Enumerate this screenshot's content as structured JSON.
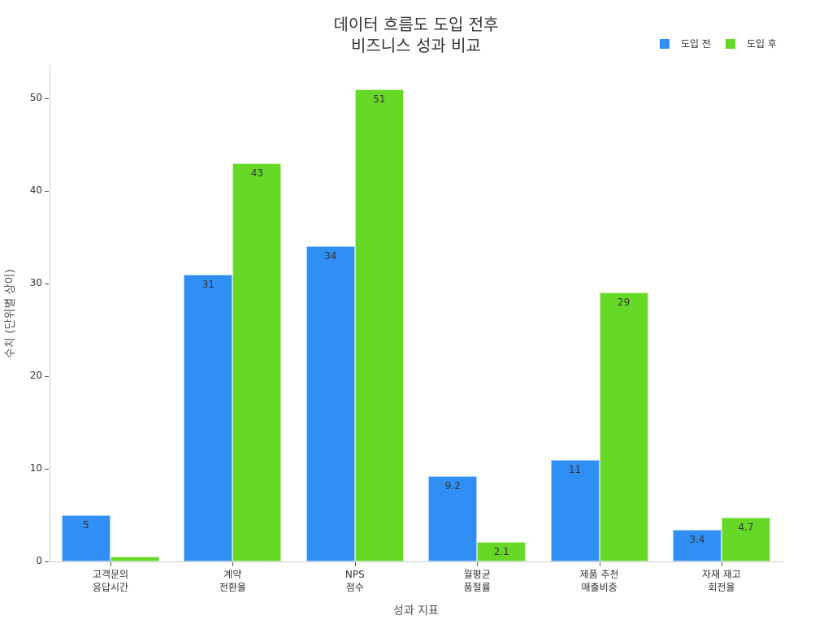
{
  "chart_data": {
    "type": "bar",
    "title": "데이터 흐름도 도입 전후\n비즈니스 성과 비교",
    "title_lines": [
      "데이터 흐름도 도입 전후",
      "비즈니스 성과 비교"
    ],
    "xlabel": "성과 지표",
    "ylabel": "수치 (단위별 상이)",
    "categories": [
      "고객문의\n응답시간",
      "계약\n전환율",
      "NPS\n점수",
      "월평균\n품절률",
      "제품 추천\n매출비중",
      "자재 재고\n회전율"
    ],
    "category_lines": [
      [
        "고객문의",
        "응답시간"
      ],
      [
        "계약",
        "전환율"
      ],
      [
        "NPS",
        "점수"
      ],
      [
        "월평균",
        "품절률"
      ],
      [
        "제품 추천",
        "매출비중"
      ],
      [
        "자재 재고",
        "회전율"
      ]
    ],
    "series": [
      {
        "name": "도입 전",
        "color": "#2f8ff5",
        "values": [
          5,
          31,
          34,
          9.2,
          11,
          3.4
        ],
        "labels": [
          "5",
          "31",
          "34",
          "9.2",
          "11",
          "3.4"
        ]
      },
      {
        "name": "도입 후",
        "color": "#66d926",
        "values": [
          0.5,
          43,
          51,
          2.1,
          29,
          4.7
        ],
        "labels": [
          "",
          "43",
          "51",
          "2.1",
          "29",
          "4.7"
        ]
      }
    ],
    "yticks": [
      0,
      10,
      20,
      30,
      40,
      50
    ],
    "ylim": [
      0,
      53.5
    ],
    "grid": false,
    "legend_position": "top-right"
  }
}
